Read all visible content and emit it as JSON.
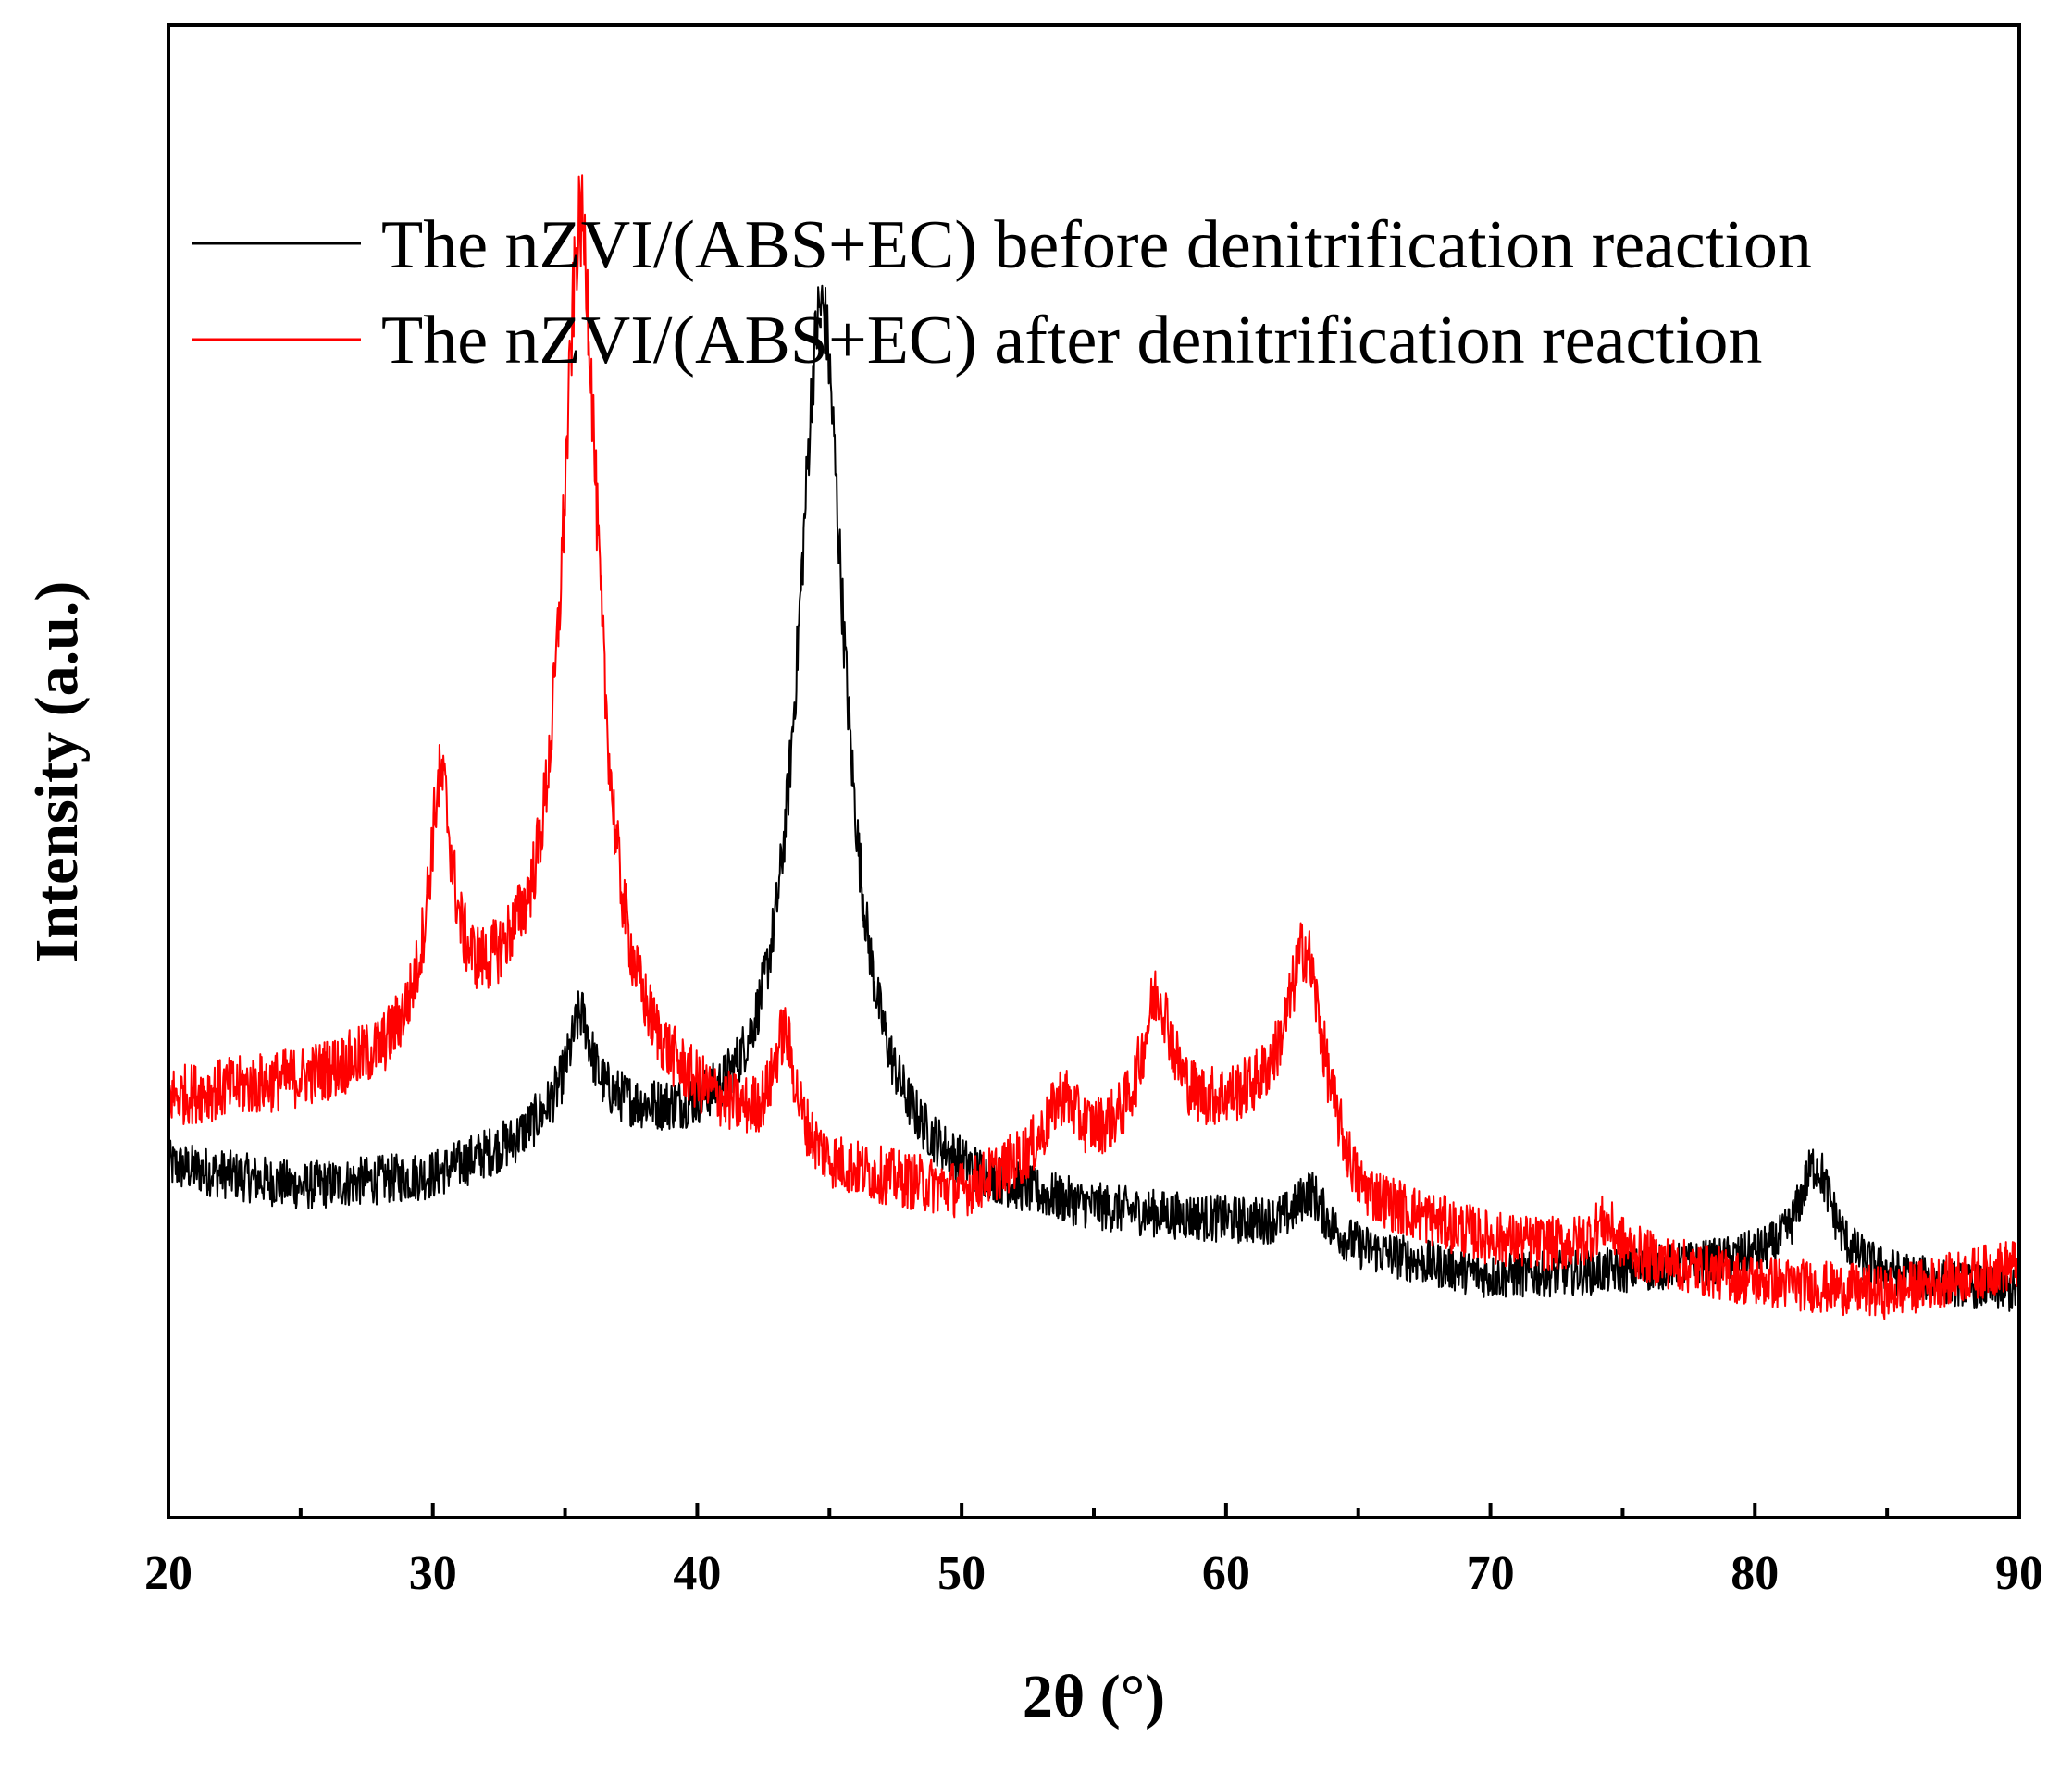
{
  "chart_data": {
    "type": "line",
    "title": "",
    "xlabel": "2θ (°)",
    "ylabel": "Intensity (a.u.)",
    "xlim": [
      20,
      90
    ],
    "ylim": [
      0,
      100
    ],
    "x_ticks": [
      20,
      30,
      40,
      50,
      60,
      70,
      80,
      90
    ],
    "x_tick_labels": [
      "20",
      "30",
      "40",
      "50",
      "60",
      "70",
      "80",
      "90"
    ],
    "y_ticks_shown": false,
    "grid": false,
    "legend": {
      "position": "top-left"
    },
    "series": [
      {
        "name": "The nZVI/(ABS+EC) before denitrification reaction",
        "color": "#000000",
        "noise": 1.2,
        "baseline": [
          [
            20,
            23.5
          ],
          [
            25,
            22
          ],
          [
            30,
            22.6
          ],
          [
            33,
            24.5
          ],
          [
            35,
            27
          ],
          [
            37,
            26.5
          ],
          [
            40,
            25
          ],
          [
            45,
            23
          ],
          [
            50,
            21.5
          ],
          [
            55,
            20.2
          ],
          [
            60,
            19.6
          ],
          [
            63,
            19.2
          ],
          [
            65,
            17.8
          ],
          [
            70,
            16
          ],
          [
            75,
            16.4
          ],
          [
            80,
            17
          ],
          [
            85,
            16
          ],
          [
            90,
            15
          ]
        ],
        "peaks": [
          {
            "center": 44.7,
            "height": 58,
            "width": 1.1
          },
          {
            "center": 35.6,
            "height": 6,
            "width": 0.5
          },
          {
            "center": 63.2,
            "height": 2.5,
            "width": 0.6
          },
          {
            "center": 82.3,
            "height": 7,
            "width": 0.8
          }
        ]
      },
      {
        "name": "The nZVI/(ABS+EC) after denitrification reaction",
        "color": "#ff0000",
        "noise": 1.4,
        "baseline": [
          [
            20,
            28
          ],
          [
            25,
            29
          ],
          [
            28,
            30
          ],
          [
            30,
            32
          ],
          [
            33,
            33.5
          ],
          [
            37,
            29
          ],
          [
            40,
            27
          ],
          [
            43,
            25
          ],
          [
            45,
            23
          ],
          [
            50,
            21.5
          ],
          [
            53,
            24
          ],
          [
            56,
            25
          ],
          [
            60,
            27
          ],
          [
            63,
            28
          ],
          [
            65,
            21
          ],
          [
            70,
            18.5
          ],
          [
            75,
            17.5
          ],
          [
            80,
            15.8
          ],
          [
            85,
            15
          ],
          [
            90,
            17
          ]
        ],
        "peaks": [
          {
            "center": 35.6,
            "height": 56,
            "width": 0.85
          },
          {
            "center": 30.3,
            "height": 16,
            "width": 0.55
          },
          {
            "center": 43.3,
            "height": 7,
            "width": 0.5
          },
          {
            "center": 53.8,
            "height": 3.5,
            "width": 0.6
          },
          {
            "center": 57.4,
            "height": 9,
            "width": 0.7
          },
          {
            "center": 63.0,
            "height": 10,
            "width": 0.8
          },
          {
            "center": 74.3,
            "height": 2,
            "width": 0.6
          }
        ]
      }
    ]
  }
}
